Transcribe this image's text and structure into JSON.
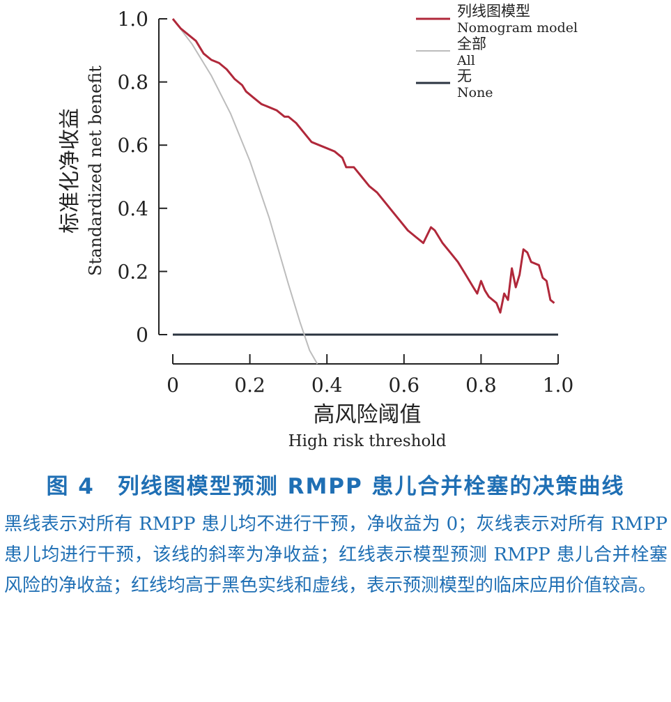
{
  "chart_data": {
    "type": "line",
    "ylabel_zh": "标准化净收益",
    "ylabel_en": "Standardized net benefit",
    "xlabel_zh": "高风险阈值",
    "xlabel_en": "High risk threshold",
    "xlim": [
      0,
      1.0
    ],
    "ylim": [
      0,
      1.0
    ],
    "x_ticks": [
      "0",
      "0.2",
      "0.4",
      "0.6",
      "0.8",
      "1.0"
    ],
    "y_ticks": [
      "0",
      "0.2",
      "0.4",
      "0.6",
      "0.8",
      "1.0"
    ],
    "legend_position": "top-right",
    "grid": false,
    "series": [
      {
        "name": "列线图模型",
        "name_en": "Nomogram model",
        "color": "#b0283a",
        "x": [
          0,
          0.02,
          0.04,
          0.06,
          0.08,
          0.1,
          0.12,
          0.14,
          0.16,
          0.18,
          0.19,
          0.21,
          0.23,
          0.25,
          0.27,
          0.29,
          0.3,
          0.32,
          0.34,
          0.36,
          0.38,
          0.4,
          0.42,
          0.44,
          0.45,
          0.47,
          0.49,
          0.51,
          0.53,
          0.55,
          0.57,
          0.59,
          0.61,
          0.63,
          0.65,
          0.67,
          0.68,
          0.7,
          0.72,
          0.74,
          0.76,
          0.78,
          0.79,
          0.8,
          0.81,
          0.82,
          0.84,
          0.85,
          0.86,
          0.87,
          0.88,
          0.89,
          0.9,
          0.91,
          0.92,
          0.93,
          0.95,
          0.96,
          0.97,
          0.98,
          0.99
        ],
        "y": [
          1.0,
          0.97,
          0.95,
          0.93,
          0.89,
          0.87,
          0.86,
          0.84,
          0.81,
          0.79,
          0.77,
          0.75,
          0.73,
          0.72,
          0.71,
          0.69,
          0.69,
          0.67,
          0.64,
          0.61,
          0.6,
          0.59,
          0.58,
          0.56,
          0.53,
          0.53,
          0.5,
          0.47,
          0.45,
          0.42,
          0.39,
          0.36,
          0.33,
          0.31,
          0.29,
          0.34,
          0.33,
          0.29,
          0.26,
          0.23,
          0.19,
          0.15,
          0.13,
          0.17,
          0.14,
          0.12,
          0.1,
          0.07,
          0.13,
          0.11,
          0.21,
          0.15,
          0.19,
          0.27,
          0.26,
          0.23,
          0.22,
          0.18,
          0.17,
          0.11,
          0.1
        ]
      },
      {
        "name": "全部",
        "name_en": "All",
        "color": "#bcbcbc",
        "x": [
          0,
          0.05,
          0.1,
          0.15,
          0.2,
          0.25,
          0.3,
          0.33,
          0.355,
          0.375
        ],
        "y": [
          1.0,
          0.92,
          0.82,
          0.7,
          0.55,
          0.37,
          0.16,
          0.04,
          -0.05,
          -0.1
        ]
      },
      {
        "name": "无",
        "name_en": "None",
        "color": "#2b3440",
        "x": [
          0,
          1.0
        ],
        "y": [
          0,
          0
        ]
      }
    ]
  },
  "caption": {
    "title": "图 4　列线图模型预测 RMPP 患儿合并栓塞的决策曲线",
    "body": "黑线表示对所有 RMPP 患儿均不进行干预，净收益为 0；灰线表示对所有 RMPP 患儿均进行干预，该线的斜率为净收益；红线表示模型预测 RMPP 患儿合并栓塞风险的净收益；红线均高于黑色实线和虚线，表示预测模型的临床应用价值较高。"
  }
}
